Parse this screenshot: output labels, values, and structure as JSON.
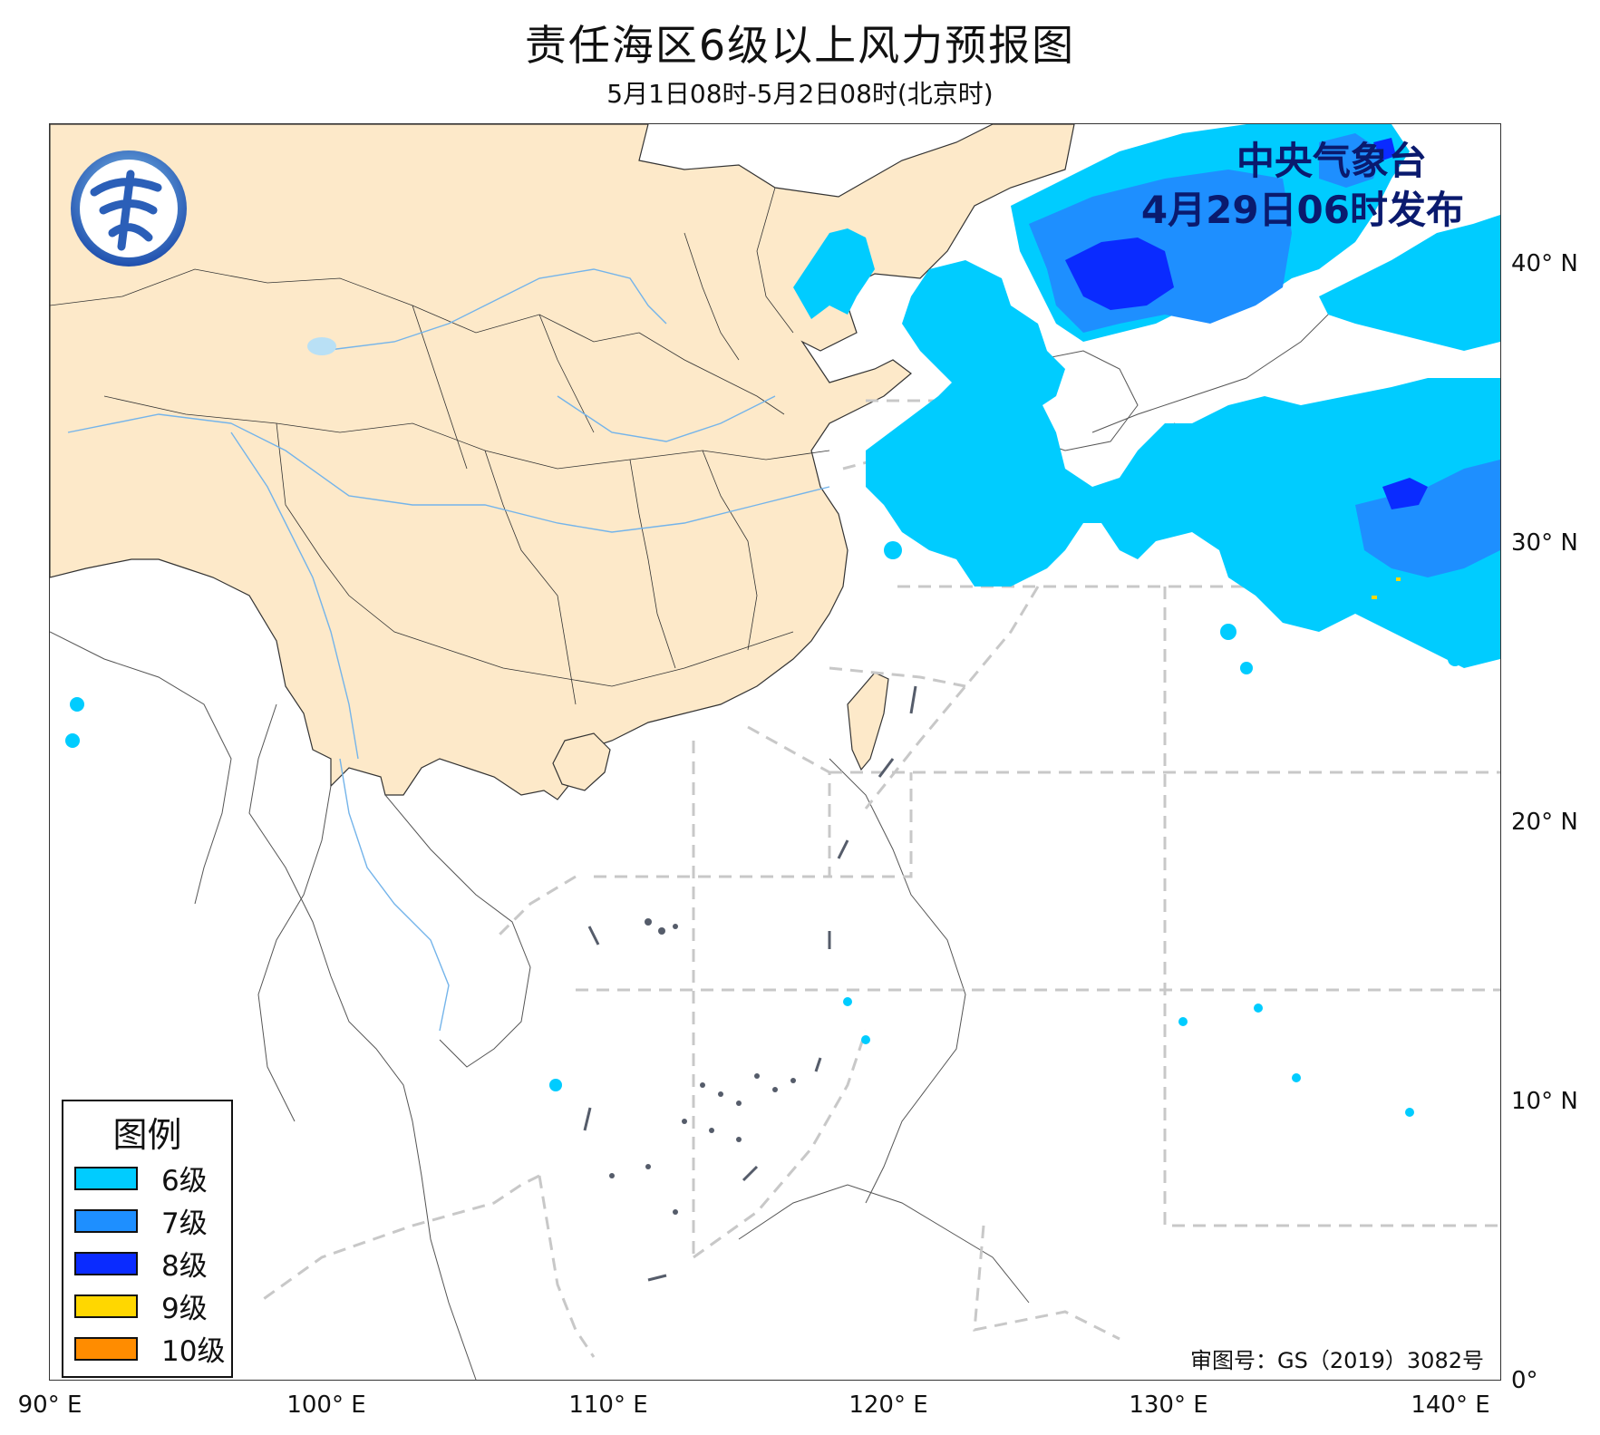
{
  "title": "责任海区6级以上风力预报图",
  "subtitle": "5月1日08时-5月2日08时(北京时)",
  "issuer": {
    "line1": "中央气象台",
    "line2": "4月29日06时发布"
  },
  "review_number": "审图号：GS（2019）3082号",
  "logo": {
    "icon": "cma-logo-icon",
    "colors": [
      "#2b5fb8",
      "#6fb6e8"
    ]
  },
  "axes": {
    "x_ticks": [
      "90° E",
      "100° E",
      "110° E",
      "120° E",
      "130° E",
      "140° E"
    ],
    "y_ticks": [
      "0°",
      "10° N",
      "20° N",
      "30° N",
      "40° N"
    ],
    "lon_range": [
      90,
      142.5
    ],
    "lat_range": [
      0,
      45
    ]
  },
  "legend": {
    "title": "图例",
    "items": [
      {
        "label": "6级",
        "color": "#00ccff"
      },
      {
        "label": "7级",
        "color": "#1e8fff"
      },
      {
        "label": "8级",
        "color": "#0a2bff"
      },
      {
        "label": "9级",
        "color": "#ffd700"
      },
      {
        "label": "10级",
        "color": "#ff8c00"
      }
    ]
  },
  "colors": {
    "land_china": "#fde9c9",
    "boundary_dash": "#c8c8c8",
    "river": "#74b4ea",
    "lake": "#b9e0f5"
  }
}
